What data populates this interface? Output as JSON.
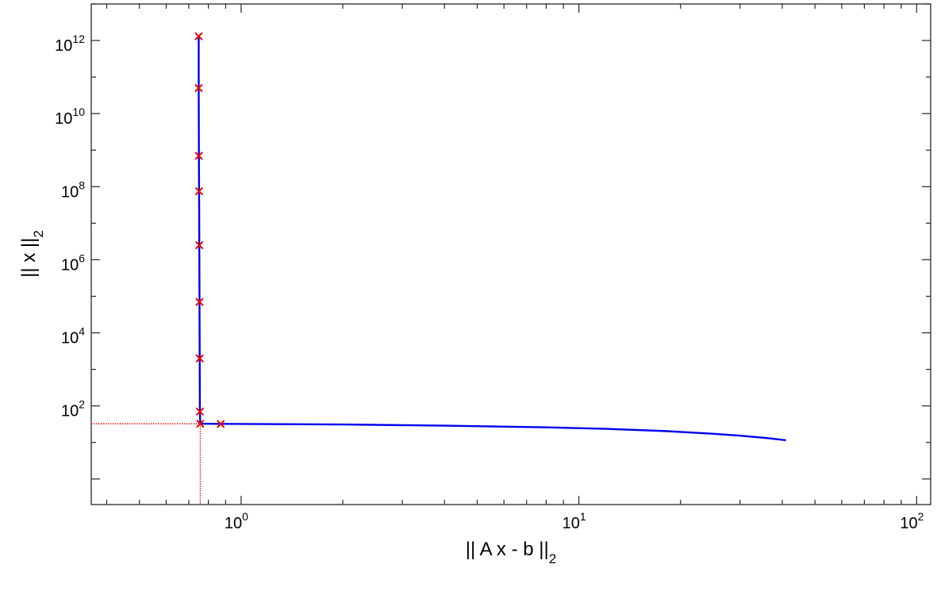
{
  "chart_data": {
    "type": "line",
    "title": "",
    "xlabel": {
      "main": "|| A x - b ||",
      "subscript": "2"
    },
    "ylabel": {
      "main": "|| x ||",
      "subscript": "2"
    },
    "xscale": "log",
    "yscale": "log",
    "xlim": [
      0.36,
      110
    ],
    "ylim": [
      0.2,
      10000000000000.0
    ],
    "grid": false,
    "xticks": [
      {
        "base": "10",
        "exp": "0",
        "value": 1
      },
      {
        "base": "10",
        "exp": "1",
        "value": 10
      },
      {
        "base": "10",
        "exp": "2",
        "value": 100
      }
    ],
    "yticks": [
      {
        "base": "10",
        "exp": "2",
        "value": 100
      },
      {
        "base": "10",
        "exp": "4",
        "value": 10000
      },
      {
        "base": "10",
        "exp": "6",
        "value": 1000000
      },
      {
        "base": "10",
        "exp": "8",
        "value": 100000000
      },
      {
        "base": "10",
        "exp": "10",
        "value": 10000000000
      },
      {
        "base": "10",
        "exp": "12",
        "value": 1000000000000
      }
    ],
    "series": [
      {
        "style": "line",
        "color": "#0000ee",
        "x": [
          0.749,
          0.749,
          0.75,
          0.751,
          0.752,
          0.753,
          0.754,
          0.755,
          0.757,
          0.76,
          0.8,
          0.85,
          1.0,
          2.0,
          4.0,
          8.0,
          12.0,
          18.0,
          25.0,
          30.0,
          36.0,
          41.0
        ],
        "y": [
          1300000000000.0,
          50000000000.0,
          700000000.0,
          75000000.0,
          2500000.0,
          70000.0,
          2000.0,
          70.0,
          32.5,
          32.5,
          32.5,
          32.3,
          32.0,
          31.0,
          28.8,
          25.9,
          23.6,
          20.5,
          17.3,
          15.3,
          13.2,
          11.5
        ]
      },
      {
        "style": "markers",
        "marker": "x",
        "color": "#ee0000",
        "x": [
          0.749,
          0.749,
          0.75,
          0.751,
          0.752,
          0.753,
          0.754,
          0.755,
          0.757,
          0.87
        ],
        "y": [
          1300000000000.0,
          50000000000.0,
          700000000.0,
          75000000.0,
          2500000.0,
          70000.0,
          2000.0,
          70.0,
          32.5,
          32.0
        ]
      }
    ],
    "corner": {
      "x": 0.757,
      "y": 32.5,
      "color": "#ee0000",
      "style": "dotted"
    }
  }
}
